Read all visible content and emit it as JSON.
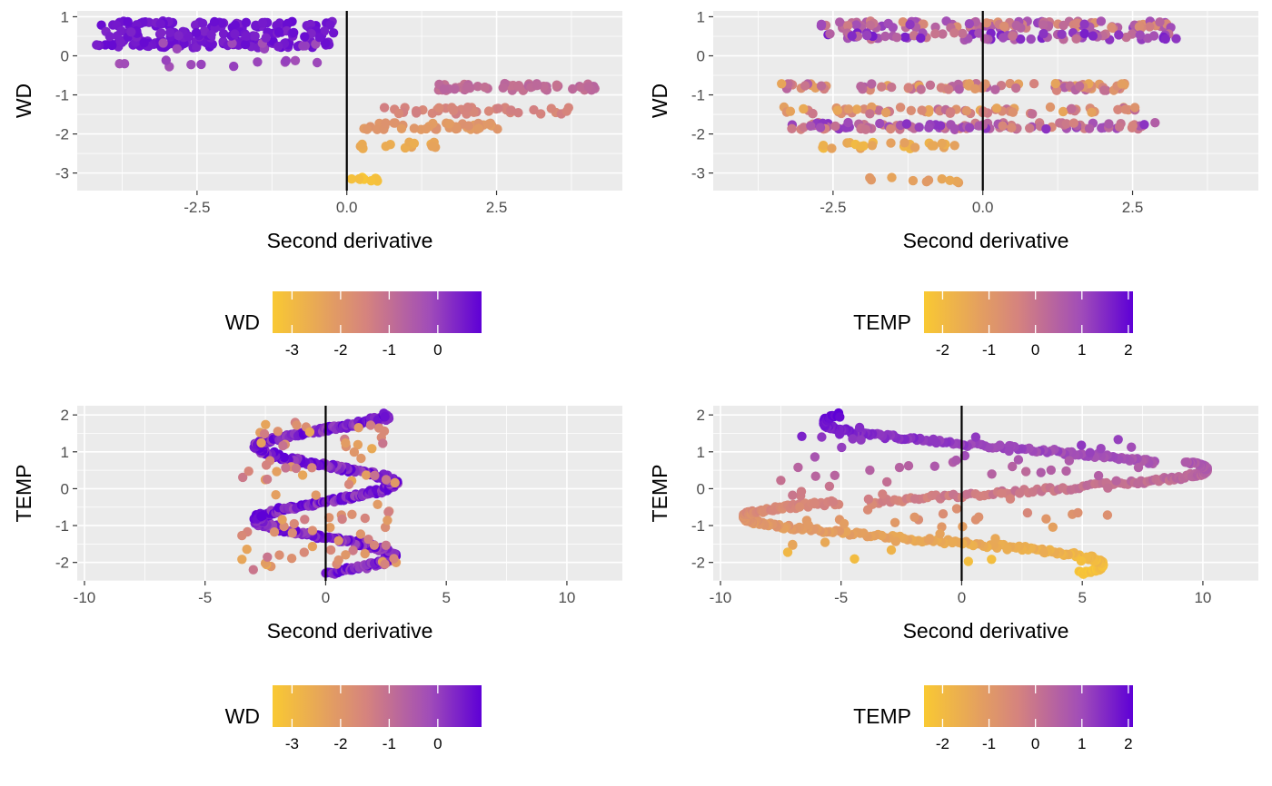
{
  "palette": {
    "low": "#F9C933",
    "mid": "#D5837E",
    "midhigh": "#A14DB8",
    "high": "#5E00D6",
    "panel_bg": "#EBEBEB",
    "grid": "#FFFFFF",
    "tick_text": "#4D4D4D"
  },
  "chart_data": [
    {
      "type": "scatter",
      "xlabel": "Second derivative",
      "ylabel": "WD",
      "xlim": [
        -4.5,
        4.6
      ],
      "ylim": [
        -3.45,
        1.15
      ],
      "x_ticks": [
        -2.5,
        0.0,
        2.5
      ],
      "x_tick_labels": [
        "-2.5",
        "0.0",
        "2.5"
      ],
      "y_ticks": [
        -3,
        -2,
        -1,
        0,
        1
      ],
      "y_tick_labels": [
        "-3",
        "-2",
        "-1",
        "0",
        "1"
      ],
      "vline_x": 0,
      "legend": {
        "title": "WD",
        "color_range": [
          -3.4,
          0.9
        ],
        "ticks": [
          -3,
          -2,
          -1,
          0
        ],
        "tick_labels": [
          "-3",
          "-2",
          "-1",
          "0"
        ]
      },
      "series": [
        {
          "x_range": [
            -4.2,
            -0.2
          ],
          "y_levels": [
            0.3,
            0.8
          ],
          "color_val": 0.6,
          "count": 160
        },
        {
          "x_range": [
            -3.8,
            -0.3
          ],
          "y_levels": [
            -0.2,
            0.25
          ],
          "color_val": -0.1,
          "count": 20
        },
        {
          "x_range": [
            1.5,
            4.2
          ],
          "y_levels": [
            -0.8
          ],
          "color_val": -0.9,
          "count": 60
        },
        {
          "x_range": [
            0.6,
            3.8
          ],
          "y_levels": [
            -1.4
          ],
          "color_val": -1.5,
          "count": 40
        },
        {
          "x_range": [
            0.2,
            2.6
          ],
          "y_levels": [
            -1.8
          ],
          "color_val": -2.0,
          "count": 45
        },
        {
          "x_range": [
            0.1,
            1.5
          ],
          "y_levels": [
            -2.3
          ],
          "color_val": -2.5,
          "count": 15
        },
        {
          "x_range": [
            0.0,
            0.6
          ],
          "y_levels": [
            -3.2
          ],
          "color_val": -3.2,
          "count": 10
        },
        {
          "x_range": [
            -4.2,
            -0.2
          ],
          "y_levels": [
            0.55
          ],
          "color_val": 0.55,
          "count": 60
        }
      ]
    },
    {
      "type": "scatter",
      "xlabel": "Second derivative",
      "ylabel": "WD",
      "xlim": [
        -4.5,
        4.6
      ],
      "ylim": [
        -3.45,
        1.15
      ],
      "x_ticks": [
        -2.5,
        0.0,
        2.5
      ],
      "x_tick_labels": [
        "-2.5",
        "0.0",
        "2.5"
      ],
      "y_ticks": [
        -3,
        -2,
        -1,
        0,
        1
      ],
      "y_tick_labels": [
        "-3",
        "-2",
        "-1",
        "0",
        "1"
      ],
      "vline_x": 0,
      "legend": {
        "title": "TEMP",
        "color_range": [
          -2.4,
          2.1
        ],
        "ticks": [
          -2,
          -1,
          0,
          1,
          2
        ],
        "tick_labels": [
          "-2",
          "-1",
          "0",
          "1",
          "2"
        ]
      },
      "series": [
        {
          "x_range": [
            -2.8,
            3.2
          ],
          "y_levels": [
            0.8
          ],
          "color_val": 0.2,
          "count": 110,
          "color_spread": 2.2
        },
        {
          "x_range": [
            -2.6,
            3.3
          ],
          "y_levels": [
            0.5
          ],
          "color_val": 0.8,
          "count": 80,
          "color_spread": 1.8
        },
        {
          "x_range": [
            -3.4,
            2.5
          ],
          "y_levels": [
            -0.8
          ],
          "color_val": -0.4,
          "count": 90,
          "color_spread": 2.0
        },
        {
          "x_range": [
            -3.4,
            2.7
          ],
          "y_levels": [
            -1.4
          ],
          "color_val": -0.6,
          "count": 70,
          "color_spread": 1.8
        },
        {
          "x_range": [
            -3.2,
            2.9
          ],
          "y_levels": [
            -1.8
          ],
          "color_val": 0.4,
          "count": 110,
          "color_spread": 2.0
        },
        {
          "x_range": [
            -2.8,
            -0.4
          ],
          "y_levels": [
            -2.3
          ],
          "color_val": -1.6,
          "count": 25,
          "color_spread": 0.8
        },
        {
          "x_range": [
            -2.0,
            -0.4
          ],
          "y_levels": [
            -3.2
          ],
          "color_val": -1.2,
          "count": 10,
          "color_spread": 0.6
        }
      ]
    },
    {
      "type": "scatter",
      "xlabel": "Second derivative",
      "ylabel": "TEMP",
      "xlim": [
        -10.3,
        12.3
      ],
      "ylim": [
        -2.5,
        2.25
      ],
      "x_ticks": [
        -10,
        -5,
        0,
        5,
        10
      ],
      "x_tick_labels": [
        "-10",
        "-5",
        "0",
        "5",
        "10"
      ],
      "y_ticks": [
        -2,
        -1,
        0,
        1,
        2
      ],
      "y_tick_labels": [
        "-2",
        "-1",
        "0",
        "1",
        "2"
      ],
      "vline_x": 0,
      "legend": {
        "title": "WD",
        "color_range": [
          -3.4,
          0.9
        ],
        "ticks": [
          -3,
          -2,
          -1,
          0
        ],
        "tick_labels": [
          "-3",
          "-2",
          "-1",
          "0"
        ]
      },
      "series": [
        {
          "shape": "spiral",
          "amplitude": 3.0,
          "y_range": [
            -2.3,
            2.0
          ],
          "turns": 2.2,
          "color_val": 0.5,
          "color_spread": 1.2,
          "count": 520
        },
        {
          "x_range": [
            -3.5,
            3.0
          ],
          "y_range": [
            -2.2,
            1.8
          ],
          "color_val": -1.8,
          "color_spread": 1.5,
          "count": 90
        }
      ]
    },
    {
      "type": "scatter",
      "xlabel": "Second derivative",
      "ylabel": "TEMP",
      "xlim": [
        -10.3,
        12.3
      ],
      "ylim": [
        -2.5,
        2.25
      ],
      "x_ticks": [
        -10,
        -5,
        0,
        5,
        10
      ],
      "x_tick_labels": [
        "-10",
        "-5",
        "0",
        "5",
        "10"
      ],
      "y_ticks": [
        -2,
        -1,
        0,
        1,
        2
      ],
      "y_tick_labels": [
        "-2",
        "-1",
        "0",
        "1",
        "2"
      ],
      "vline_x": 0,
      "legend": {
        "title": "TEMP",
        "color_range": [
          -2.4,
          2.1
        ],
        "ticks": [
          -2,
          -1,
          0,
          1,
          2
        ],
        "tick_labels": [
          "-2",
          "-1",
          "0",
          "1",
          "2"
        ]
      },
      "series": [
        {
          "shape": "sweep",
          "amplitude": 9.5,
          "y_range": [
            -2.3,
            2.0
          ],
          "turns": 1.6,
          "color_mode": "y",
          "count": 520
        },
        {
          "x_range": [
            -7.5,
            7.5
          ],
          "y_range": [
            -2.0,
            1.7
          ],
          "color_mode": "y",
          "count": 90
        }
      ]
    }
  ]
}
